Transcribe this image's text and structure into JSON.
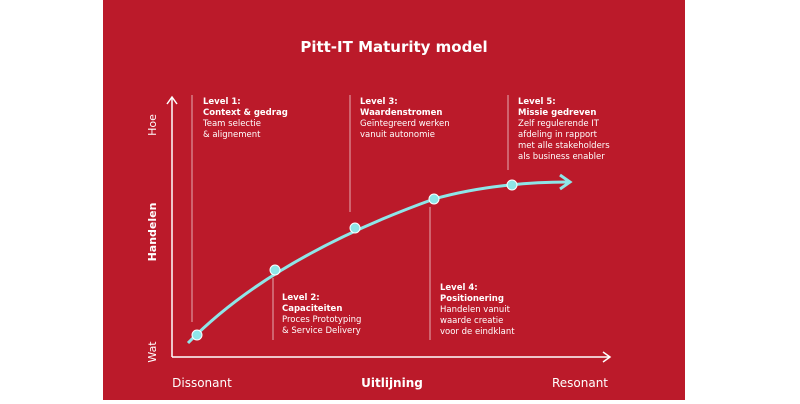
{
  "title": "Pitt-IT Maturity model",
  "y_axis": {
    "top": "Hoe",
    "label": "Handelen",
    "bottom": "Wat"
  },
  "x_axis": {
    "left": "Dissonant",
    "label": "Uitlijning",
    "right": "Resonant"
  },
  "levels": [
    {
      "heading": "Level 1:",
      "name": "Context & gedrag",
      "description": [
        "Team selectie",
        "& alignement"
      ]
    },
    {
      "heading": "Level 2:",
      "name": "Capaciteiten",
      "description": [
        "Proces Prototyping",
        "& Service Delivery"
      ]
    },
    {
      "heading": "Level 3:",
      "name": "Waardenstromen",
      "description": [
        "Geïntegreerd werken",
        "vanuit autonomie"
      ]
    },
    {
      "heading": "Level 4:",
      "name": "Positionering",
      "description": [
        "Handelen vanuit",
        "waarde creatie",
        "voor de eindklant"
      ]
    },
    {
      "heading": "Level 5:",
      "name": "Missie gedreven",
      "description": [
        "Zelf regulerende IT",
        "afdeling in rapport",
        "met alle stakeholders",
        "als business enabler"
      ]
    }
  ]
}
